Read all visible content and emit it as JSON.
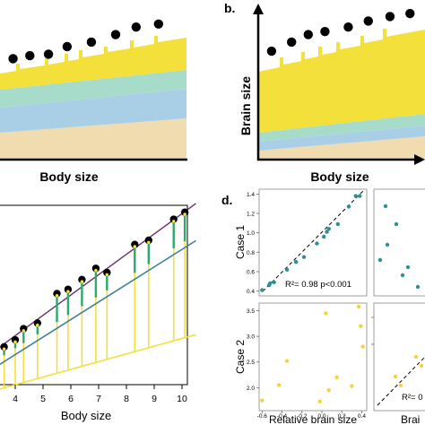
{
  "panel_labels": {
    "b": "b.",
    "d": "d."
  },
  "panel_a": {
    "xlabel": "Body size"
  },
  "panel_b": {
    "xlabel": "Body size",
    "ylabel": "Brain size"
  },
  "panel_c": {
    "xlabel": "Body size"
  },
  "panel_d": {
    "case1_label": "Case 1",
    "case2_label": "Case 2",
    "xlabel_left": "Relative brain size",
    "xlabel_right_partial": "Brai",
    "stat_case1": "R²= 0.98 p<0.001",
    "stat_case2_partial": "R²= 0"
  },
  "colors": {
    "yellow": "#f3e03b",
    "teal": "#a6dcc9",
    "blue": "#a9cfe6",
    "tan": "#f1dcb0",
    "dot": "#000000",
    "teal_pt": "#2f8f95",
    "yellow_pt": "#f2d43a",
    "purple": "#6a2e6e",
    "green": "#2ea86b",
    "steel": "#3f7f9a"
  },
  "chart_data": [
    {
      "panel": "a",
      "type": "area",
      "xlabel": "Body size",
      "points": [
        [
          0.07,
          0.33
        ],
        [
          0.16,
          0.31
        ],
        [
          0.26,
          0.3
        ],
        [
          0.36,
          0.25
        ],
        [
          0.49,
          0.22
        ],
        [
          0.62,
          0.17
        ],
        [
          0.73,
          0.12
        ],
        [
          0.85,
          0.1
        ]
      ]
    },
    {
      "panel": "b",
      "type": "area",
      "xlabel": "Body size",
      "ylabel": "Brain size",
      "points": [
        [
          0.08,
          0.28
        ],
        [
          0.2,
          0.22
        ],
        [
          0.3,
          0.17
        ],
        [
          0.4,
          0.15
        ],
        [
          0.54,
          0.12
        ],
        [
          0.66,
          0.08
        ],
        [
          0.79,
          0.05
        ],
        [
          0.91,
          0.03
        ]
      ]
    },
    {
      "panel": "c",
      "type": "line",
      "xlabel": "Body size",
      "x_ticks": [
        "4",
        "5",
        "6",
        "7",
        "8",
        "9",
        "10"
      ],
      "xlim": [
        3.2,
        10.5
      ],
      "points": [
        [
          3.6,
          5.0
        ],
        [
          4.0,
          5.5
        ],
        [
          4.3,
          6.3
        ],
        [
          4.8,
          6.7
        ],
        [
          5.5,
          8.8
        ],
        [
          5.9,
          9.1
        ],
        [
          6.4,
          9.8
        ],
        [
          6.9,
          10.6
        ],
        [
          7.3,
          10.3
        ],
        [
          8.3,
          12.3
        ],
        [
          8.8,
          12.6
        ],
        [
          9.7,
          14.1
        ],
        [
          10.1,
          14.6
        ]
      ]
    },
    {
      "panel": "d",
      "type": "scatter",
      "series": [
        {
          "name": "Case 1",
          "x_ticks": [
            "-0.6",
            "-0.4",
            "-0.2",
            "0.0",
            "0.2",
            "0.4"
          ],
          "y_ticks": [
            "0.4",
            "0.6",
            "0.8",
            "1.0",
            "1.2",
            "1.4"
          ],
          "xlim": [
            -0.63,
            0.45
          ],
          "ylim": [
            0.35,
            1.45
          ],
          "x": [
            -0.6,
            -0.53,
            -0.52,
            -0.48,
            -0.35,
            -0.26,
            -0.18,
            -0.05,
            0.02,
            0.05,
            0.07,
            0.16,
            0.27,
            0.34,
            0.38
          ],
          "y": [
            0.41,
            0.46,
            0.48,
            0.49,
            0.62,
            0.7,
            0.75,
            0.89,
            0.96,
            1.01,
            1.04,
            1.09,
            1.27,
            1.38,
            1.38
          ]
        },
        {
          "name": "Case 2",
          "x_ticks": [
            "-0.6",
            "-0.4",
            "-0.2",
            "0.0",
            "0.2",
            "0.4"
          ],
          "y_ticks": [
            "2.0",
            "2.5",
            "3.0",
            "3.5"
          ],
          "xlim": [
            -0.63,
            0.45
          ],
          "ylim": [
            1.55,
            3.65
          ],
          "x": [
            -0.6,
            -0.43,
            -0.35,
            -0.02,
            0.04,
            0.07,
            0.15,
            0.3,
            0.37,
            0.39,
            0.41
          ],
          "y": [
            1.75,
            2.05,
            2.52,
            1.73,
            3.45,
            1.95,
            2.2,
            2.03,
            3.58,
            3.2,
            2.8
          ]
        }
      ]
    }
  ]
}
